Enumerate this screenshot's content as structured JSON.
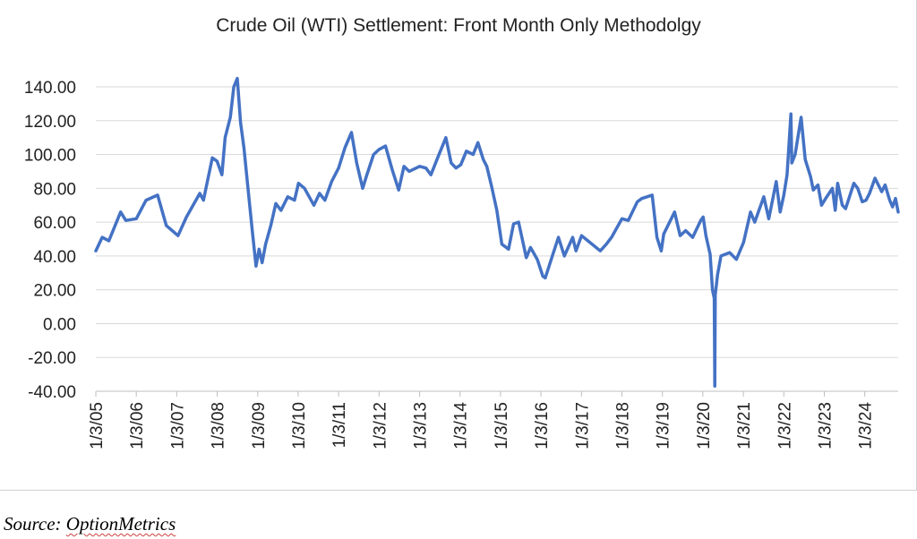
{
  "chart_data": {
    "type": "line",
    "title": "Crude Oil (WTI) Settlement: Front Month Only Methodolgy",
    "xlabel": "",
    "ylabel": "",
    "ylim": [
      -40,
      140
    ],
    "yticks": [
      "140.00",
      "120.00",
      "100.00",
      "80.00",
      "60.00",
      "40.00",
      "20.00",
      "0.00",
      "-20.00",
      "-40.00"
    ],
    "ytick_values": [
      140,
      120,
      100,
      80,
      60,
      40,
      20,
      0,
      -20,
      -40
    ],
    "xticks": [
      "1/3/05",
      "1/3/06",
      "1/3/07",
      "1/3/08",
      "1/3/09",
      "1/3/10",
      "1/3/11",
      "1/3/12",
      "1/3/13",
      "1/3/14",
      "1/3/15",
      "1/3/16",
      "1/3/17",
      "1/3/18",
      "1/3/19",
      "1/3/20",
      "1/3/21",
      "1/3/22",
      "1/3/23",
      "1/3/24"
    ],
    "x_range": [
      "2005-01-03",
      "2024-10-31"
    ],
    "grid": "horizontal",
    "legend": "none",
    "line_color": "#4472c4",
    "series": [
      {
        "x": [
          "2005-01-03",
          "2005-03-01",
          "2005-05-01",
          "2005-08-15",
          "2005-10-01",
          "2006-01-03",
          "2006-04-01",
          "2006-07-15",
          "2006-10-01",
          "2007-01-15",
          "2007-04-01",
          "2007-07-30",
          "2007-09-01",
          "2007-11-20",
          "2008-01-02",
          "2008-02-15",
          "2008-03-15",
          "2008-05-01",
          "2008-06-01",
          "2008-07-03",
          "2008-08-01",
          "2008-09-01",
          "2008-10-10",
          "2008-11-15",
          "2008-12-19",
          "2009-01-15",
          "2009-02-12",
          "2009-03-15",
          "2009-05-01",
          "2009-06-15",
          "2009-08-01",
          "2009-10-01",
          "2009-12-01",
          "2010-01-06",
          "2010-03-01",
          "2010-05-25",
          "2010-07-15",
          "2010-09-01",
          "2010-11-01",
          "2011-01-03",
          "2011-03-01",
          "2011-04-29",
          "2011-06-15",
          "2011-08-08",
          "2011-09-15",
          "2011-11-15",
          "2012-01-03",
          "2012-03-01",
          "2012-05-01",
          "2012-06-28",
          "2012-08-15",
          "2012-10-01",
          "2013-01-03",
          "2013-03-01",
          "2013-04-15",
          "2013-06-15",
          "2013-08-28",
          "2013-10-15",
          "2013-11-27",
          "2014-01-10",
          "2014-03-01",
          "2014-05-01",
          "2014-06-13",
          "2014-08-01",
          "2014-09-01",
          "2014-10-15",
          "2014-12-01",
          "2015-01-15",
          "2015-03-17",
          "2015-05-01",
          "2015-06-15",
          "2015-08-24",
          "2015-10-01",
          "2015-12-01",
          "2016-01-20",
          "2016-02-11",
          "2016-04-15",
          "2016-06-09",
          "2016-08-01",
          "2016-10-15",
          "2016-11-14",
          "2017-01-03",
          "2017-03-01",
          "2017-06-21",
          "2017-08-15",
          "2017-10-01",
          "2018-01-03",
          "2018-03-01",
          "2018-05-22",
          "2018-07-01",
          "2018-10-03",
          "2018-11-15",
          "2018-12-24",
          "2019-01-15",
          "2019-04-23",
          "2019-06-12",
          "2019-08-01",
          "2019-10-03",
          "2019-12-15",
          "2020-01-06",
          "2020-01-31",
          "2020-03-09",
          "2020-03-30",
          "2020-04-15",
          "2020-04-20",
          "2020-04-24",
          "2020-05-15",
          "2020-06-15",
          "2020-09-01",
          "2020-11-01",
          "2021-01-04",
          "2021-03-08",
          "2021-04-15",
          "2021-07-06",
          "2021-08-20",
          "2021-10-26",
          "2021-12-01",
          "2022-01-03",
          "2022-02-01",
          "2022-03-08",
          "2022-03-16",
          "2022-04-15",
          "2022-06-08",
          "2022-07-15",
          "2022-09-01",
          "2022-09-26",
          "2022-11-07",
          "2022-12-09",
          "2023-01-15",
          "2023-03-17",
          "2023-04-12",
          "2023-05-04",
          "2023-06-15",
          "2023-07-15",
          "2023-09-27",
          "2023-11-01",
          "2023-12-12",
          "2024-01-15",
          "2024-02-15",
          "2024-04-05",
          "2024-06-04",
          "2024-07-05",
          "2024-08-15",
          "2024-09-10",
          "2024-10-07",
          "2024-10-31"
        ],
        "values": [
          43,
          51,
          49,
          66,
          61,
          62,
          73,
          76,
          58,
          52,
          63,
          77,
          73,
          98,
          96,
          88,
          110,
          122,
          140,
          145,
          119,
          104,
          78,
          55,
          34,
          44,
          36,
          47,
          58,
          71,
          67,
          75,
          73,
          83,
          80,
          70,
          77,
          73,
          84,
          92,
          104,
          113,
          95,
          80,
          88,
          100,
          103,
          105,
          91,
          79,
          93,
          90,
          93,
          92,
          88,
          98,
          110,
          95,
          92,
          94,
          102,
          100,
          107,
          97,
          93,
          81,
          67,
          47,
          44,
          59,
          60,
          39,
          45,
          38,
          28,
          27,
          40,
          51,
          40,
          51,
          43,
          52,
          49,
          43,
          47,
          51,
          62,
          61,
          72,
          74,
          76,
          51,
          43,
          53,
          66,
          52,
          55,
          51,
          61,
          63,
          52,
          41,
          20,
          15,
          -37,
          17,
          29,
          40,
          42,
          38,
          48,
          66,
          60,
          75,
          62,
          84,
          66,
          76,
          88,
          124,
          95,
          100,
          122,
          97,
          87,
          79,
          82,
          70,
          74,
          80,
          67,
          83,
          70,
          68,
          83,
          80,
          72,
          73,
          77,
          86,
          78,
          82,
          73,
          69,
          74,
          66
        ]
      }
    ],
    "source": {
      "label": "Source:",
      "name": "OptionMetrics"
    }
  }
}
